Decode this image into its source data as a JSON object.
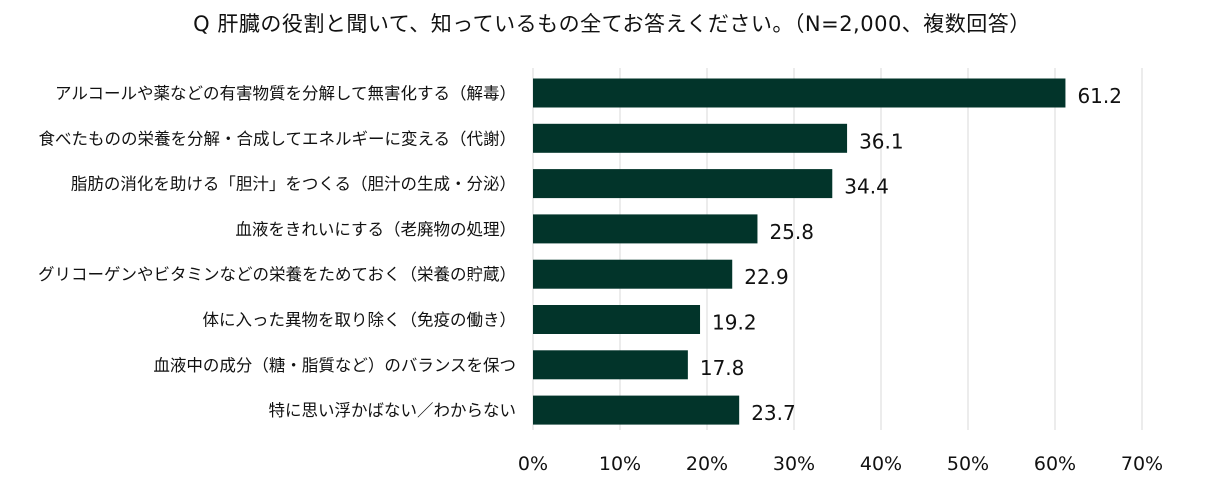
{
  "chart_data": {
    "type": "bar",
    "orientation": "horizontal",
    "title": "Q 肝臓の役割と聞いて、知っているもの全てお答えください。（N=2,000、複数回答）",
    "categories": [
      "アルコールや薬などの有害物質を分解して無害化する（解毒）",
      "食べたものの栄養を分解・合成してエネルギーに変える（代謝）",
      "脂肪の消化を助ける「胆汁」をつくる（胆汁の生成・分泌）",
      "血液をきれいにする（老廃物の処理）",
      "グリコーゲンやビタミンなどの栄養をためておく（栄養の貯蔵）",
      "体に入った異物を取り除く（免疫の働き）",
      "血液中の成分（糖・脂質など）のバランスを保つ",
      "特に思い浮かばない／わからない"
    ],
    "values": [
      61.2,
      36.1,
      34.4,
      25.8,
      22.9,
      19.2,
      17.8,
      23.7
    ],
    "value_labels": [
      "61.2",
      "36.1",
      "34.4",
      "25.8",
      "22.9",
      "19.2",
      "17.8",
      "23.7"
    ],
    "xlim": [
      0,
      70
    ],
    "xticks": [
      0,
      10,
      20,
      30,
      40,
      50,
      60,
      70
    ],
    "xtick_labels": [
      "0%",
      "10%",
      "20%",
      "30%",
      "40%",
      "50%",
      "60%",
      "70%"
    ],
    "grid": "vertical",
    "legend": "none",
    "bar_color": "#02342a",
    "grid_color": "#d9d9d9"
  }
}
